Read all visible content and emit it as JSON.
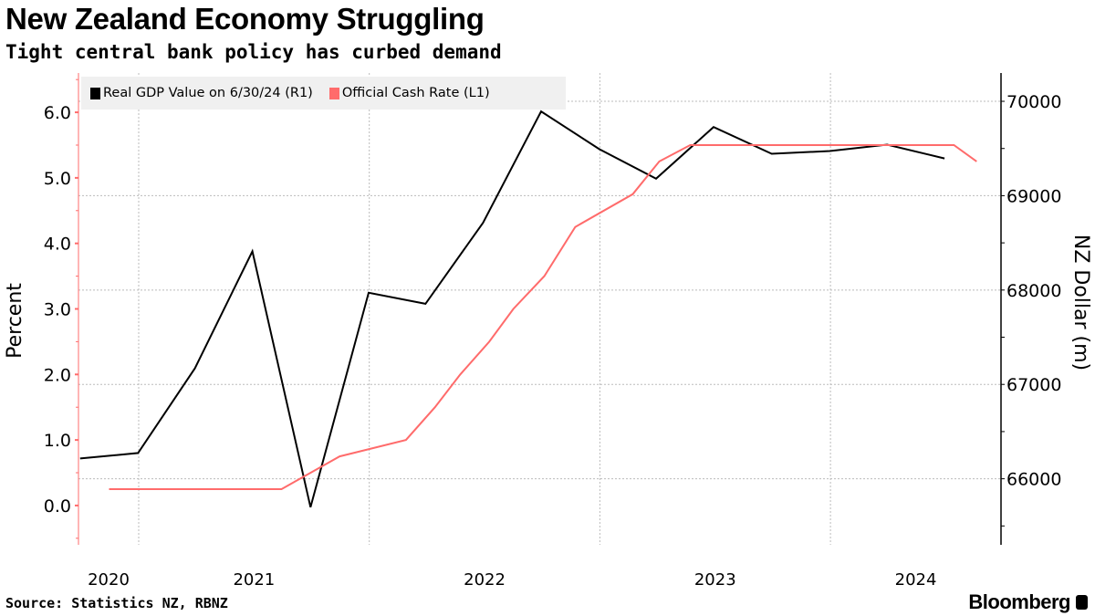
{
  "header": {
    "title": "New Zealand Economy Struggling",
    "subtitle": "Tight central bank policy has curbed demand"
  },
  "footer": {
    "source": "Source: Statistics NZ, RBNZ",
    "logo": "Bloomberg"
  },
  "chart_data": {
    "type": "line",
    "title": "New Zealand Economy Struggling",
    "subtitle": "Tight central bank policy has curbed demand",
    "legend_placement": "top-left",
    "grid": true,
    "x_axis": {
      "type": "date",
      "tick_labels": [
        "2020",
        "2021",
        "2022",
        "2023",
        "2024"
      ],
      "range": [
        "2020-04-01",
        "2024-09-15"
      ]
    },
    "y_left": {
      "label": "Percent",
      "range": [
        -0.6,
        6.6
      ],
      "ticks": [
        "0.0",
        "1.0",
        "2.0",
        "3.0",
        "4.0",
        "5.0",
        "6.0"
      ],
      "color": "#ff6b6b"
    },
    "y_right": {
      "label": "NZ Dollar (m)",
      "range": [
        65300,
        70300
      ],
      "ticks": [
        "66000",
        "67000",
        "68000",
        "69000",
        "70000"
      ],
      "color": "#000000"
    },
    "series": [
      {
        "name": "Real GDP Value on 6/30/24 (R1)",
        "axis": "right",
        "color": "#000000",
        "points": [
          [
            "2020-09-30",
            66215
          ],
          [
            "2020-12-31",
            66273
          ],
          [
            "2021-03-31",
            67170
          ],
          [
            "2021-06-30",
            68410
          ],
          [
            "2021-09-30",
            65698
          ],
          [
            "2021-12-31",
            67971
          ],
          [
            "2022-03-31",
            67854
          ],
          [
            "2022-06-30",
            68712
          ],
          [
            "2022-09-30",
            69893
          ],
          [
            "2022-12-31",
            69493
          ],
          [
            "2023-03-31",
            69180
          ],
          [
            "2023-06-30",
            69727
          ],
          [
            "2023-09-30",
            69444
          ],
          [
            "2023-12-31",
            69473
          ],
          [
            "2024-03-31",
            69541
          ],
          [
            "2024-06-30",
            69395
          ]
        ]
      },
      {
        "name": "Official Cash Rate (L1)",
        "axis": "left",
        "color": "#ff6b6b",
        "points": [
          [
            "2020-11-15",
            0.25
          ],
          [
            "2021-08-15",
            0.25
          ],
          [
            "2021-11-15",
            0.75
          ],
          [
            "2022-02-28",
            1.0
          ],
          [
            "2022-04-15",
            1.5
          ],
          [
            "2022-05-25",
            2.0
          ],
          [
            "2022-07-10",
            2.5
          ],
          [
            "2022-08-17",
            3.0
          ],
          [
            "2022-10-05",
            3.5
          ],
          [
            "2022-11-23",
            4.25
          ],
          [
            "2023-02-22",
            4.75
          ],
          [
            "2023-04-05",
            5.25
          ],
          [
            "2023-05-24",
            5.5
          ],
          [
            "2024-07-15",
            5.5
          ],
          [
            "2024-08-20",
            5.25
          ]
        ]
      }
    ]
  }
}
